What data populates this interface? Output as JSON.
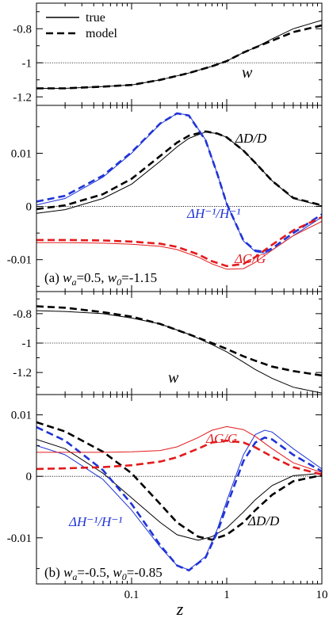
{
  "legend": {
    "true_label": "true",
    "model_label": "model",
    "placement": "top-left"
  },
  "xlabel": "z",
  "x_tick_labels": [
    "0.1",
    "1",
    "10"
  ],
  "colors": {
    "black": "#000000",
    "red": "#e31a1c",
    "blue": "#1f34d6"
  },
  "chart_data": [
    {
      "type": "line",
      "panel": "top-w",
      "x_scale": "log",
      "xlim": [
        0.01,
        10
      ],
      "ylim": [
        -1.25,
        -0.65
      ],
      "y_ticks": [
        -1.2,
        -1.0,
        -0.8
      ],
      "y_tick_labels": [
        "-1.2",
        "-1",
        "-0.8"
      ],
      "hline": -1,
      "annotations": [
        {
          "text": "w",
          "x": 1.0,
          "y": -0.91
        }
      ],
      "series": [
        {
          "role": "true",
          "color": "black",
          "style": "solid",
          "x": [
            0.01,
            0.02,
            0.05,
            0.1,
            0.2,
            0.4,
            0.7,
            1,
            1.5,
            2,
            3,
            5,
            10
          ],
          "y": [
            -1.15,
            -1.15,
            -1.14,
            -1.13,
            -1.1,
            -1.06,
            -1.02,
            -0.99,
            -0.94,
            -0.91,
            -0.86,
            -0.8,
            -0.75
          ]
        },
        {
          "role": "model",
          "color": "black",
          "style": "dashed",
          "x": [
            0.01,
            0.02,
            0.05,
            0.1,
            0.2,
            0.4,
            0.7,
            1,
            1.5,
            2,
            3,
            5,
            10
          ],
          "y": [
            -1.15,
            -1.15,
            -1.14,
            -1.13,
            -1.1,
            -1.06,
            -1.02,
            -0.99,
            -0.94,
            -0.91,
            -0.87,
            -0.82,
            -0.78
          ]
        }
      ]
    },
    {
      "type": "line",
      "panel": "a",
      "x_scale": "log",
      "xlim": [
        0.01,
        10
      ],
      "ylim": [
        -0.016,
        0.019
      ],
      "y_ticks": [
        -0.01,
        0.0,
        0.01
      ],
      "y_tick_labels": [
        "-0.01",
        "0",
        "0.01"
      ],
      "hline": 0,
      "panel_label": {
        "prefix": "(a) ",
        "wa_label": "w",
        "wa_sub": "a",
        "wa_value": "=0.5, ",
        "w0_label": "w",
        "w0_sub": "0",
        "w0_value": "=-1.15"
      },
      "annotations": [
        {
          "text": "ΔD/D",
          "color": "black"
        },
        {
          "text": "ΔH⁻¹/H⁻¹",
          "color": "blue"
        },
        {
          "text": "ΔG/G",
          "color": "red"
        }
      ],
      "series": [
        {
          "role": "true",
          "quantity": "ΔD/D",
          "color": "black",
          "style": "solid",
          "x": [
            0.01,
            0.02,
            0.05,
            0.1,
            0.2,
            0.3,
            0.4,
            0.6,
            0.8,
            1,
            1.5,
            2,
            3,
            5,
            10
          ],
          "y": [
            -0.0013,
            -0.0006,
            0.0015,
            0.0042,
            0.0085,
            0.0112,
            0.0128,
            0.014,
            0.0137,
            0.013,
            0.0105,
            0.0082,
            0.0048,
            0.0015,
            0.0001
          ]
        },
        {
          "role": "model",
          "quantity": "ΔD/D",
          "color": "black",
          "style": "dashed",
          "x": [
            0.01,
            0.02,
            0.05,
            0.1,
            0.2,
            0.3,
            0.4,
            0.6,
            0.8,
            1,
            1.5,
            2,
            3,
            5,
            10
          ],
          "y": [
            -0.0005,
            0.0002,
            0.0023,
            0.0052,
            0.0095,
            0.012,
            0.0133,
            0.0141,
            0.0137,
            0.013,
            0.0105,
            0.0082,
            0.0048,
            0.0016,
            0.0002
          ]
        },
        {
          "role": "true",
          "quantity": "ΔH⁻¹/H⁻¹",
          "color": "blue",
          "style": "solid",
          "x": [
            0.01,
            0.02,
            0.05,
            0.1,
            0.2,
            0.3,
            0.4,
            0.6,
            0.8,
            1,
            1.5,
            2,
            2.5,
            3,
            5,
            10
          ],
          "y": [
            0.0003,
            0.0015,
            0.0055,
            0.01,
            0.0155,
            0.0175,
            0.0172,
            0.0125,
            0.006,
            0.0005,
            -0.0065,
            -0.0085,
            -0.0088,
            -0.0082,
            -0.0055,
            -0.002
          ]
        },
        {
          "role": "model",
          "quantity": "ΔH⁻¹/H⁻¹",
          "color": "blue",
          "style": "dashed",
          "x": [
            0.01,
            0.02,
            0.05,
            0.1,
            0.2,
            0.3,
            0.4,
            0.6,
            0.8,
            1,
            1.5,
            2,
            2.5,
            3,
            5,
            10
          ],
          "y": [
            0.0009,
            0.002,
            0.0058,
            0.0102,
            0.0156,
            0.0175,
            0.0171,
            0.0124,
            0.006,
            0.0005,
            -0.0064,
            -0.0083,
            -0.0085,
            -0.0079,
            -0.005,
            -0.0015
          ]
        },
        {
          "role": "true",
          "quantity": "ΔG/G",
          "color": "red",
          "style": "solid",
          "x": [
            0.01,
            0.02,
            0.05,
            0.1,
            0.2,
            0.3,
            0.5,
            0.7,
            1,
            1.5,
            2,
            3,
            5,
            10
          ],
          "y": [
            -0.0068,
            -0.0068,
            -0.0069,
            -0.0071,
            -0.0075,
            -0.0081,
            -0.0095,
            -0.0108,
            -0.0118,
            -0.0117,
            -0.0105,
            -0.0082,
            -0.0055,
            -0.0028
          ]
        },
        {
          "role": "model",
          "quantity": "ΔG/G",
          "color": "red",
          "style": "dashed",
          "x": [
            0.01,
            0.02,
            0.05,
            0.1,
            0.2,
            0.3,
            0.5,
            0.7,
            1,
            1.5,
            2,
            3,
            5,
            10
          ],
          "y": [
            -0.0063,
            -0.0063,
            -0.0064,
            -0.0066,
            -0.007,
            -0.0076,
            -0.009,
            -0.0103,
            -0.0112,
            -0.0108,
            -0.0095,
            -0.0072,
            -0.0045,
            -0.002
          ]
        }
      ]
    },
    {
      "type": "line",
      "panel": "middle-w",
      "x_scale": "log",
      "xlim": [
        0.01,
        10
      ],
      "ylim": [
        -1.35,
        -0.65
      ],
      "y_ticks": [
        -1.2,
        -1.0,
        -0.8
      ],
      "y_tick_labels": [
        "-1.2",
        "-1",
        "-0.8"
      ],
      "hline": -1,
      "annotations": [
        {
          "text": "w",
          "x": 0.32,
          "y": -0.88
        }
      ],
      "series": [
        {
          "role": "true",
          "color": "black",
          "style": "solid",
          "x": [
            0.01,
            0.02,
            0.05,
            0.1,
            0.2,
            0.4,
            0.7,
            1,
            1.5,
            2,
            3,
            5,
            10
          ],
          "y": [
            -0.78,
            -0.785,
            -0.8,
            -0.83,
            -0.87,
            -0.94,
            -1.01,
            -1.06,
            -1.13,
            -1.18,
            -1.24,
            -1.3,
            -1.34
          ]
        },
        {
          "role": "model",
          "color": "black",
          "style": "dashed",
          "x": [
            0.01,
            0.02,
            0.05,
            0.1,
            0.2,
            0.4,
            0.7,
            1,
            1.5,
            2,
            3,
            5,
            10
          ],
          "y": [
            -0.75,
            -0.76,
            -0.79,
            -0.82,
            -0.87,
            -0.94,
            -1.0,
            -1.04,
            -1.09,
            -1.12,
            -1.16,
            -1.19,
            -1.22
          ]
        }
      ]
    },
    {
      "type": "line",
      "panel": "b",
      "x_scale": "log",
      "xlim": [
        0.01,
        10
      ],
      "ylim": [
        -0.0175,
        0.0133
      ],
      "y_ticks": [
        -0.01,
        0.0,
        0.01
      ],
      "y_tick_labels": [
        "-0.01",
        "0",
        "0.01"
      ],
      "hline": 0,
      "panel_label": {
        "prefix": "(b) ",
        "wa_label": "w",
        "wa_sub": "a",
        "wa_value": "=-0.5, ",
        "w0_label": "w",
        "w0_sub": "0",
        "w0_value": "=-0.85"
      },
      "annotations": [
        {
          "text": "ΔG/G",
          "color": "red"
        },
        {
          "text": "ΔH⁻¹/H⁻¹",
          "color": "blue"
        },
        {
          "text": "ΔD/D",
          "color": "black"
        }
      ],
      "series": [
        {
          "role": "true",
          "quantity": "ΔD/D",
          "color": "black",
          "style": "solid",
          "x": [
            0.01,
            0.02,
            0.05,
            0.1,
            0.2,
            0.3,
            0.5,
            0.7,
            1,
            1.5,
            2,
            3,
            5,
            10
          ],
          "y": [
            0.006,
            0.0045,
            0.0005,
            -0.0035,
            -0.0075,
            -0.0095,
            -0.0104,
            -0.0098,
            -0.0084,
            -0.0058,
            -0.0038,
            -0.0015,
            0.0001,
            0.0005
          ]
        },
        {
          "role": "model",
          "quantity": "ΔD/D",
          "color": "black",
          "style": "dashed",
          "x": [
            0.01,
            0.02,
            0.05,
            0.1,
            0.2,
            0.3,
            0.5,
            0.7,
            1,
            1.5,
            2,
            3,
            5,
            10
          ],
          "y": [
            0.0088,
            0.0073,
            0.004,
            0.0005,
            -0.0045,
            -0.0075,
            -0.0098,
            -0.0103,
            -0.0095,
            -0.0075,
            -0.0055,
            -0.003,
            -0.0008,
            0.0002
          ]
        },
        {
          "role": "true",
          "quantity": "ΔH⁻¹/H⁻¹",
          "color": "blue",
          "style": "solid",
          "x": [
            0.01,
            0.02,
            0.05,
            0.1,
            0.2,
            0.3,
            0.4,
            0.6,
            0.8,
            1,
            1.5,
            2,
            2.5,
            3,
            5,
            10
          ],
          "y": [
            0.005,
            0.0035,
            -0.0005,
            -0.0055,
            -0.0115,
            -0.0145,
            -0.0152,
            -0.013,
            -0.0085,
            -0.004,
            0.0035,
            0.0068,
            0.0075,
            0.0072,
            0.0045,
            0.0012
          ]
        },
        {
          "role": "model",
          "quantity": "ΔH⁻¹/H⁻¹",
          "color": "blue",
          "style": "dashed",
          "x": [
            0.01,
            0.02,
            0.05,
            0.1,
            0.2,
            0.3,
            0.4,
            0.6,
            0.8,
            1,
            1.5,
            2,
            2.5,
            3,
            5,
            10
          ],
          "y": [
            0.008,
            0.0058,
            0.001,
            -0.0045,
            -0.0112,
            -0.0145,
            -0.0153,
            -0.0132,
            -0.009,
            -0.0048,
            0.0025,
            0.0055,
            0.0063,
            0.006,
            0.0035,
            0.0008
          ]
        },
        {
          "role": "true",
          "quantity": "ΔG/G",
          "color": "red",
          "style": "solid",
          "x": [
            0.01,
            0.02,
            0.05,
            0.1,
            0.2,
            0.3,
            0.5,
            0.7,
            1,
            1.5,
            2,
            3,
            5,
            10
          ],
          "y": [
            0.0039,
            0.0039,
            0.0039,
            0.004,
            0.0042,
            0.0048,
            0.0063,
            0.0075,
            0.0081,
            0.0076,
            0.0065,
            0.0045,
            0.0022,
            0.0006
          ]
        },
        {
          "role": "model",
          "quantity": "ΔG/G",
          "color": "red",
          "style": "dashed",
          "x": [
            0.01,
            0.02,
            0.05,
            0.1,
            0.2,
            0.3,
            0.5,
            0.7,
            1,
            1.5,
            2,
            3,
            5,
            10
          ],
          "y": [
            0.0012,
            0.0013,
            0.0015,
            0.0018,
            0.0024,
            0.0031,
            0.0045,
            0.0055,
            0.0058,
            0.0055,
            0.0047,
            0.0032,
            0.0015,
            0.0003
          ]
        }
      ]
    }
  ]
}
